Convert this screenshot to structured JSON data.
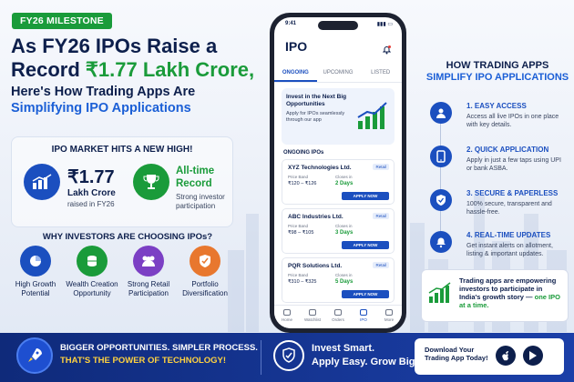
{
  "colors": {
    "navy": "#0d1f4c",
    "green": "#1a9b3a",
    "blue": "#1b4fbf",
    "accent_blue": "#1b5fd6",
    "yellow": "#ffd23f"
  },
  "header": {
    "badge": "FY26 MILESTONE",
    "title_l1": "As FY26 IPOs Raise a",
    "title_l2_a": "Record ",
    "title_l2_b": "₹1.77 Lakh Crore,",
    "sub_l1": "Here's How Trading Apps Are",
    "sub_l2": "Simplifying IPO Applications"
  },
  "market": {
    "title": "IPO MARKET HITS A NEW HIGH!",
    "amount": "₹1.77",
    "amount_unit": "Lakh Crore",
    "amount_note": "raised in FY26",
    "record_l1": "All-time",
    "record_l2": "Record",
    "record_note": "Strong investor participation",
    "icons": [
      "chart-icon",
      "trophy-icon"
    ]
  },
  "why": {
    "title": "WHY INVESTORS ARE CHOOSING IPOs?",
    "items": [
      {
        "label": "High Growth Potential",
        "icon": "pie-chart-icon",
        "color": "#1b4fbf"
      },
      {
        "label": "Wealth Creation Opportunity",
        "icon": "coins-icon",
        "color": "#1a9b3a"
      },
      {
        "label": "Strong Retail Participation",
        "icon": "people-icon",
        "color": "#7b3fc4"
      },
      {
        "label": "Portfolio Diversification",
        "icon": "shield-check-icon",
        "color": "#e8772e"
      }
    ]
  },
  "phone": {
    "time": "9:41",
    "title": "IPO",
    "tabs": [
      "ONGOING",
      "UPCOMING",
      "LISTED"
    ],
    "active_tab": "ONGOING",
    "promo_title": "Invest in the Next Big Opportunities",
    "promo_text": "Apply for IPOs seamlessly through our app",
    "section": "ONGOING IPOs",
    "ipos": [
      {
        "name": "XYZ Technologies Ltd.",
        "tag": "Retail",
        "price_label": "Price Band",
        "price": "₹120 – ₹126",
        "close_label": "Closes in",
        "close": "2 Days",
        "button": "APPLY NOW"
      },
      {
        "name": "ABC Industries Ltd.",
        "tag": "Retail",
        "price_label": "Price Band",
        "price": "₹98 – ₹105",
        "close_label": "Closes in",
        "close": "3 Days",
        "button": "APPLY NOW"
      },
      {
        "name": "PQR Solutions Ltd.",
        "tag": "Retail",
        "price_label": "Price Band",
        "price": "₹310 – ₹325",
        "close_label": "Closes in",
        "close": "5 Days",
        "button": "APPLY NOW"
      }
    ],
    "nav": [
      "Home",
      "Watchlist",
      "Orders",
      "IPO",
      "More"
    ],
    "active_nav": "IPO"
  },
  "how": {
    "title_l1": "HOW TRADING APPS",
    "title_l2": "SIMPLIFY IPO APPLICATIONS",
    "steps": [
      {
        "title": "1. EASY ACCESS",
        "desc": "Access all live IPOs in one place with key details.",
        "icon": "user-icon"
      },
      {
        "title": "2. QUICK APPLICATION",
        "desc": "Apply in just a few taps using UPI or bank ASBA.",
        "icon": "phone-icon"
      },
      {
        "title": "3. SECURE & PAPERLESS",
        "desc": "100% secure, transparent and hassle-free.",
        "icon": "shield-icon"
      },
      {
        "title": "4. REAL-TIME UPDATES",
        "desc": "Get instant alerts on allotment, listing & important updates.",
        "icon": "bell-icon"
      }
    ],
    "empower_a": "Trading apps are empowering investors to participate in India's growth story —",
    "empower_b": "one IPO at a time."
  },
  "footer": {
    "l1": "BIGGER OPPORTUNITIES. SIMPLER PROCESS.",
    "l2": "THAT'S THE POWER OF TECHNOLOGY!",
    "r1": "Invest Smart.",
    "r2": "Apply Easy. Grow Big.",
    "download": "Download Your Trading App Today!"
  }
}
